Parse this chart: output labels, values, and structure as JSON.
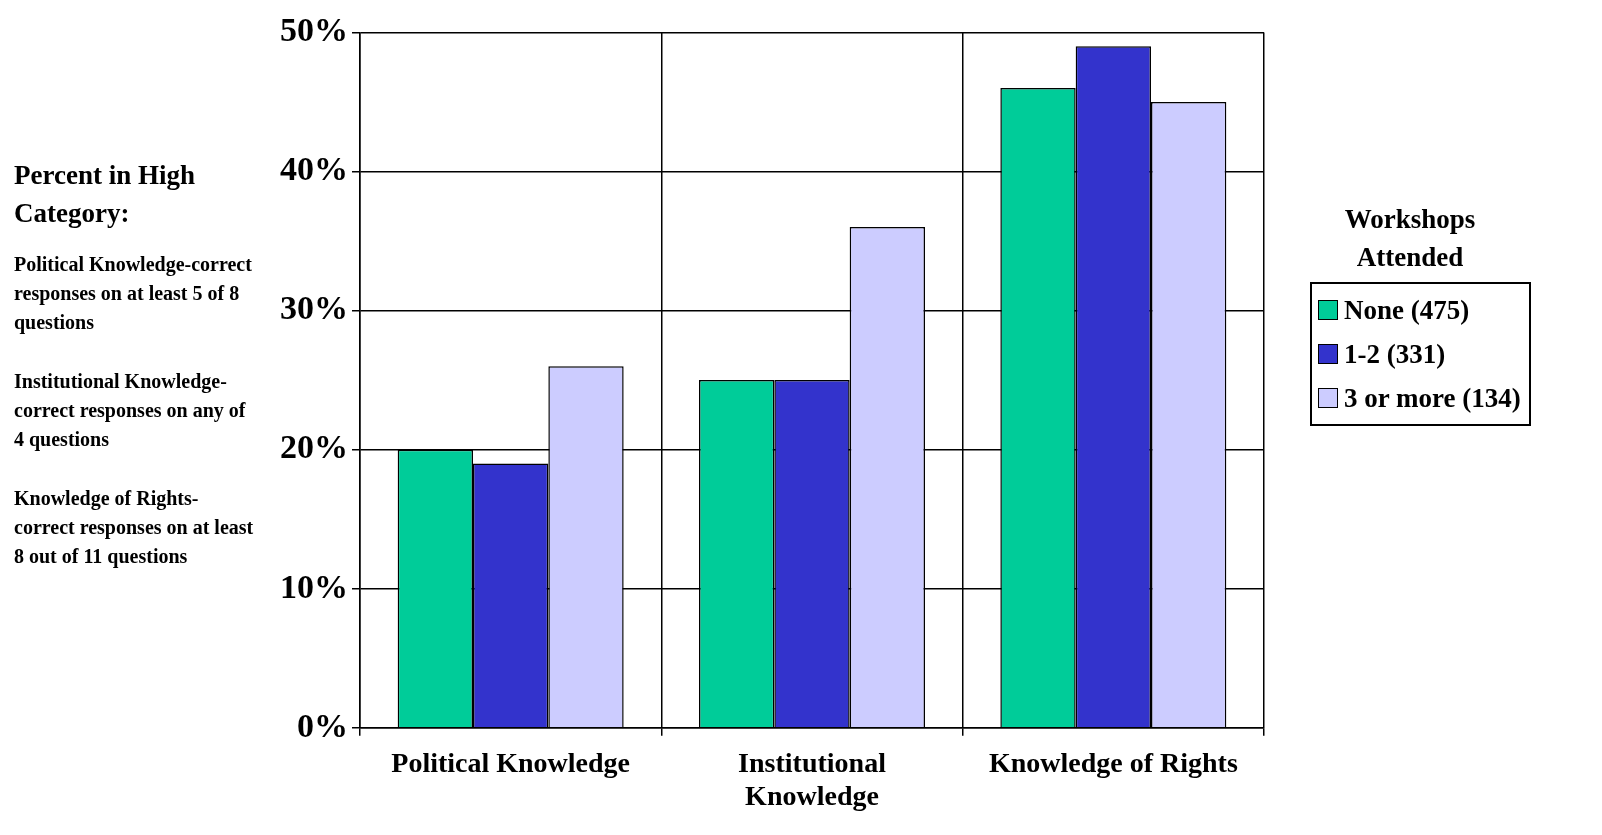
{
  "chart_data": {
    "type": "bar",
    "ylabel": "Percent in High Category:",
    "legend_title": "Workshops Attended",
    "categories": [
      "Political Knowledge",
      "Institutional Knowledge",
      "Knowledge of Rights"
    ],
    "series": [
      {
        "name": "None (475)",
        "color": "#00cc99",
        "values": [
          20,
          25,
          46
        ]
      },
      {
        "name": "1-2 (331)",
        "color": "#3333cc",
        "values": [
          19,
          25,
          49
        ]
      },
      {
        "name": "3 or more (134)",
        "color": "#ccccff",
        "values": [
          26,
          36,
          45
        ]
      }
    ],
    "ylim": [
      0,
      50
    ],
    "yticks": [
      {
        "value": 0,
        "label": "0%"
      },
      {
        "value": 10,
        "label": "10%"
      },
      {
        "value": 20,
        "label": "20%"
      },
      {
        "value": 30,
        "label": "30%"
      },
      {
        "value": 40,
        "label": "40%"
      },
      {
        "value": 50,
        "label": "50%"
      }
    ],
    "grid": true,
    "legend": "right",
    "annotations": [
      "Political Knowledge-correct responses on at least 5 of 8 questions",
      "Institutional Knowledge-correct responses on any of 4 questions",
      "Knowledge of Rights-correct responses on at least 8 out of 11 questions"
    ]
  }
}
